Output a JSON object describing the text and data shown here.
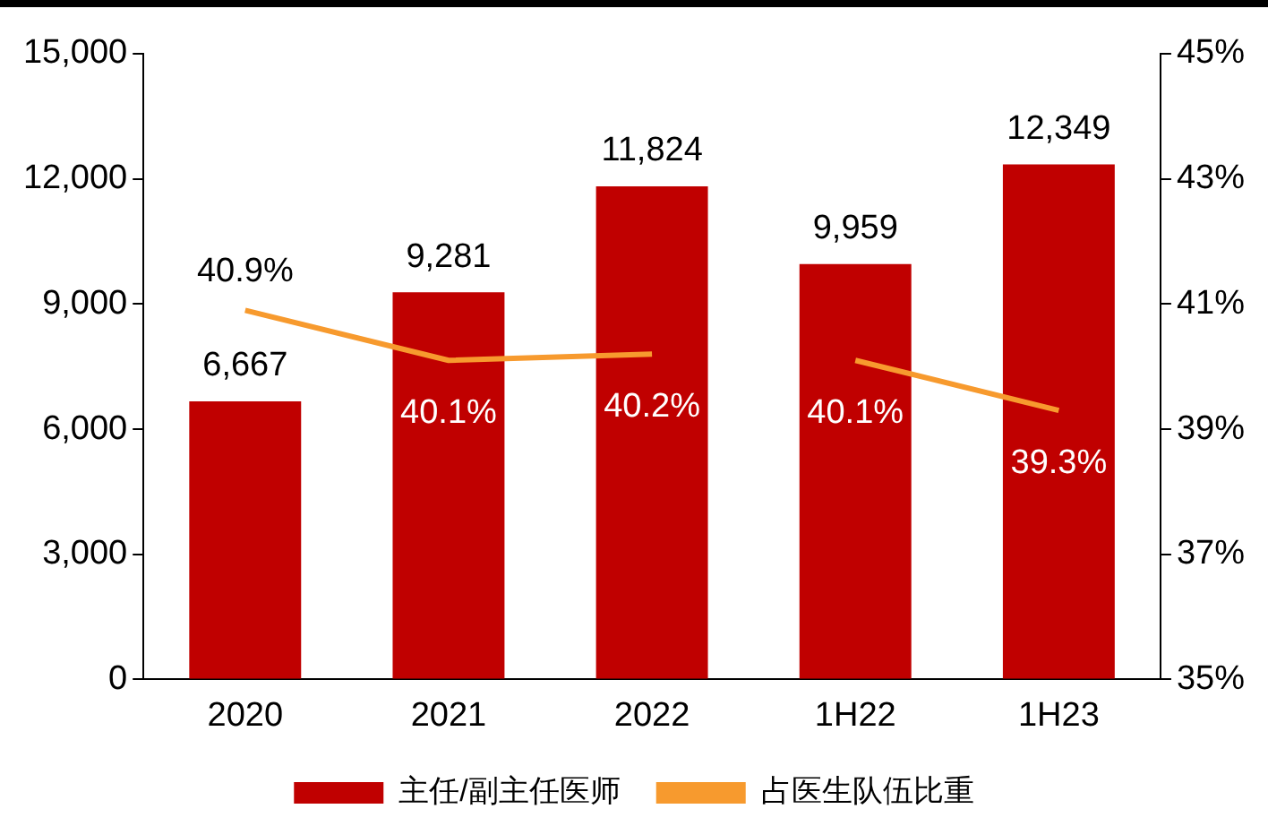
{
  "chart_data": {
    "type": "bar",
    "categories": [
      "2020",
      "2021",
      "2022",
      "1H22",
      "1H23"
    ],
    "series": [
      {
        "name": "主任/副主任医师",
        "color": "#c00000",
        "values": [
          6667,
          9281,
          11824,
          9959,
          12349
        ],
        "value_labels": [
          "6,667",
          "9,281",
          "11,824",
          "9,959",
          "12,349"
        ]
      },
      {
        "name": "占医生队伍比重",
        "type": "line",
        "axis": "y2",
        "color": "#f79a2e",
        "values": [
          40.9,
          40.1,
          40.2,
          null,
          null
        ],
        "value_labels": [
          "40.9%",
          "40.1%",
          "40.2%",
          null,
          null
        ]
      },
      {
        "type": "line",
        "axis": "y2",
        "color": "#f79a2e",
        "values": [
          null,
          null,
          null,
          40.1,
          39.3
        ],
        "value_labels": [
          null,
          null,
          null,
          "40.1%",
          "39.3%"
        ]
      }
    ],
    "ylim": [
      0,
      15000
    ],
    "yticks": [
      {
        "value": 0,
        "label": "0"
      },
      {
        "value": 3000,
        "label": "3,000"
      },
      {
        "value": 6000,
        "label": "6,000"
      },
      {
        "value": 9000,
        "label": "9,000"
      },
      {
        "value": 12000,
        "label": "12,000"
      },
      {
        "value": 15000,
        "label": "15,000"
      }
    ],
    "y2lim": [
      35,
      45
    ],
    "y2ticks": [
      {
        "value": 35,
        "label": "35%"
      },
      {
        "value": 37,
        "label": "37%"
      },
      {
        "value": 39,
        "label": "39%"
      },
      {
        "value": 41,
        "label": "41%"
      },
      {
        "value": 43,
        "label": "43%"
      },
      {
        "value": 45,
        "label": "45%"
      }
    ],
    "grid": false,
    "legend": "bottom",
    "marker": "none",
    "line_style": "solid"
  }
}
